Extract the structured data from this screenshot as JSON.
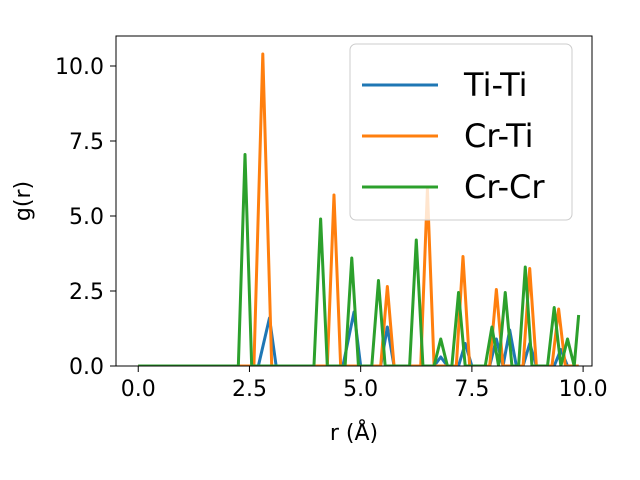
{
  "chart_data": {
    "type": "line",
    "xlabel": "r (Å)",
    "ylabel": "g(r)",
    "xlim": [
      -0.5,
      10.2
    ],
    "ylim": [
      0,
      11
    ],
    "x_ticks": [
      0.0,
      2.5,
      5.0,
      7.5,
      10.0
    ],
    "x_tick_labels": [
      "0.0",
      "2.5",
      "5.0",
      "7.5",
      "10.0"
    ],
    "y_ticks": [
      0.0,
      2.5,
      5.0,
      7.5,
      10.0
    ],
    "y_tick_labels": [
      "0.0",
      "2.5",
      "5.0",
      "7.5",
      "10.0"
    ],
    "grid": false,
    "legend_position": "top-right",
    "series": [
      {
        "name": "Ti-Ti",
        "color": "#1f77b4",
        "x": [
          0.0,
          2.7,
          2.95,
          3.1,
          4.6,
          4.85,
          5.0,
          5.45,
          5.6,
          5.75,
          6.65,
          6.8,
          6.95,
          7.2,
          7.35,
          7.5,
          7.9,
          8.05,
          8.2,
          8.35,
          8.5,
          8.65,
          8.8,
          8.95,
          9.35,
          9.5,
          9.65,
          9.9
        ],
        "y": [
          0.0,
          0.0,
          1.6,
          0.0,
          0.0,
          1.8,
          0.0,
          0.0,
          1.3,
          0.0,
          0.0,
          0.3,
          0.0,
          0.0,
          0.75,
          0.0,
          0.0,
          0.9,
          0.0,
          1.2,
          0.0,
          0.0,
          0.75,
          0.0,
          0.0,
          0.55,
          0.0,
          0.0
        ]
      },
      {
        "name": "Cr-Ti",
        "color": "#ff7f0e",
        "x": [
          0.0,
          2.6,
          2.8,
          3.0,
          4.25,
          4.4,
          4.55,
          5.45,
          5.6,
          5.75,
          6.35,
          6.5,
          6.65,
          7.15,
          7.3,
          7.45,
          7.9,
          8.05,
          8.2,
          8.65,
          8.8,
          8.95,
          9.3,
          9.45,
          9.6,
          9.9
        ],
        "y": [
          0.0,
          0.0,
          10.4,
          0.0,
          0.0,
          5.7,
          0.0,
          0.0,
          2.65,
          0.0,
          0.0,
          5.9,
          0.0,
          0.0,
          3.65,
          0.0,
          0.0,
          2.55,
          0.0,
          0.0,
          3.25,
          0.0,
          0.0,
          1.9,
          0.0,
          0.0
        ]
      },
      {
        "name": "Cr-Cr",
        "color": "#2ca02c",
        "x": [
          0.0,
          2.25,
          2.4,
          2.55,
          3.95,
          4.1,
          4.25,
          4.65,
          4.8,
          4.95,
          5.25,
          5.4,
          5.55,
          6.1,
          6.25,
          6.4,
          6.65,
          6.8,
          6.95,
          7.05,
          7.2,
          7.35,
          7.8,
          7.95,
          8.1,
          8.25,
          8.4,
          8.55,
          8.7,
          8.85,
          9.2,
          9.35,
          9.5,
          9.65,
          9.8,
          9.9
        ],
        "y": [
          0.0,
          0.0,
          7.05,
          0.0,
          0.0,
          4.9,
          0.0,
          0.0,
          3.6,
          0.0,
          0.0,
          2.85,
          0.0,
          0.0,
          4.2,
          0.0,
          0.0,
          0.9,
          0.0,
          0.0,
          2.45,
          0.0,
          0.0,
          1.3,
          0.0,
          2.45,
          0.0,
          0.0,
          3.3,
          0.0,
          0.0,
          1.95,
          0.0,
          0.9,
          0.0,
          1.7
        ]
      }
    ]
  }
}
